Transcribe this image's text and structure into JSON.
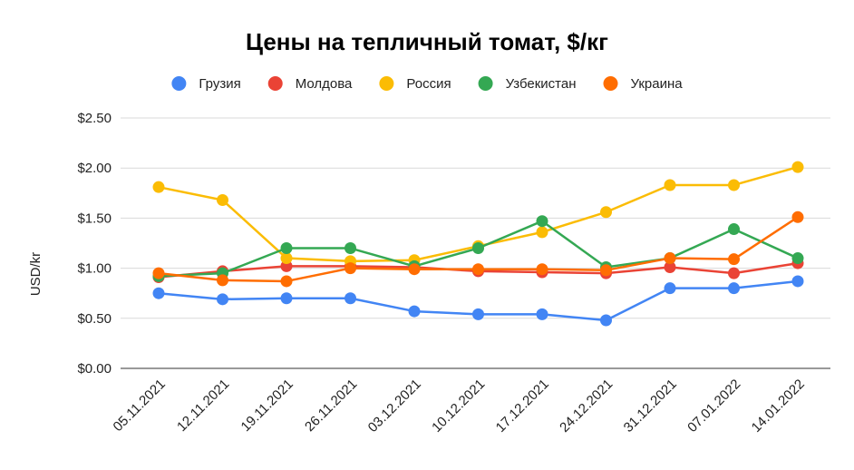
{
  "chart_data": {
    "type": "line",
    "title": "Цены на тепличный томат, $/кг",
    "ylabel": "USD/kr",
    "xlabel": "",
    "ylim": [
      0,
      2.5
    ],
    "yticks": [
      "$0.00",
      "$0.50",
      "$1.00",
      "$1.50",
      "$2.00",
      "$2.50"
    ],
    "ytick_values": [
      0,
      0.5,
      1.0,
      1.5,
      2.0,
      2.5
    ],
    "grid": true,
    "legend": "top",
    "categories": [
      "05.11.2021",
      "12.11.2021",
      "19.11.2021",
      "26.11.2021",
      "03.12.2021",
      "10.12.2021",
      "17.12.2021",
      "24.12.2021",
      "31.12.2021",
      "07.01.2022",
      "14.01.2022"
    ],
    "series": [
      {
        "name": "Грузия",
        "color": "#4285F4",
        "values": [
          0.75,
          0.69,
          0.7,
          0.7,
          0.57,
          0.54,
          0.54,
          0.48,
          0.8,
          0.8,
          0.87
        ]
      },
      {
        "name": "Молдова",
        "color": "#EA4335",
        "values": [
          0.91,
          0.97,
          1.02,
          1.02,
          1.01,
          0.97,
          0.96,
          0.95,
          1.01,
          0.95,
          1.05
        ]
      },
      {
        "name": "Россия",
        "color": "#FBBC04",
        "values": [
          1.81,
          1.68,
          1.1,
          1.07,
          1.08,
          1.22,
          1.36,
          1.56,
          1.83,
          1.83,
          2.01
        ]
      },
      {
        "name": "Узбекистан",
        "color": "#34A853",
        "values": [
          0.92,
          0.95,
          1.2,
          1.2,
          1.02,
          1.2,
          1.47,
          1.01,
          1.1,
          1.39,
          1.1
        ]
      },
      {
        "name": "Украина",
        "color": "#FF6D01",
        "values": [
          0.95,
          0.88,
          0.87,
          1.0,
          0.99,
          0.99,
          0.99,
          0.98,
          1.1,
          1.09,
          1.51
        ]
      }
    ]
  }
}
